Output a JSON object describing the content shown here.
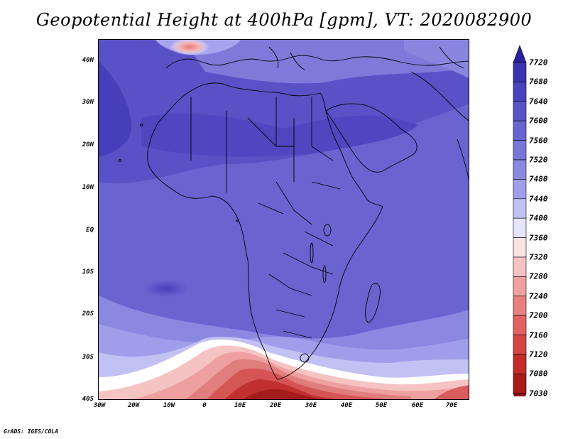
{
  "title": "Geopotential Height at 400hPa [gpm], VT: 2020082900",
  "credit": "GrADS: IGES/COLA",
  "map": {
    "projection": "latlon",
    "lat_range": [
      -40,
      45
    ],
    "lon_range": [
      -30,
      75
    ],
    "lat_ticks": [
      "40N",
      "30N",
      "20N",
      "10N",
      "EQ",
      "10S",
      "20S",
      "30S",
      "40S"
    ],
    "lon_ticks": [
      "30W",
      "20W",
      "10W",
      "0",
      "10E",
      "20E",
      "30E",
      "40E",
      "50E",
      "60E",
      "70E"
    ],
    "field_description": "",
    "boundaries": "country outlines"
  },
  "colorbar": {
    "levels": [
      "7720",
      "7680",
      "7640",
      "7600",
      "7560",
      "7520",
      "7480",
      "7440",
      "7400",
      "7360",
      "7320",
      "7280",
      "7240",
      "7200",
      "7160",
      "7120",
      "7080",
      "7030"
    ],
    "colors": [
      "#2a1f9e",
      "#3b34b0",
      "#4a43bd",
      "#5a53c7",
      "#6a64d0",
      "#7a75d9",
      "#8b88e2",
      "#a09eea",
      "#c2c1f3",
      "#e6e5fb",
      "#fbe4e4",
      "#f6c3c3",
      "#f0a2a2",
      "#e98080",
      "#e06262",
      "#d54545",
      "#c42c2c",
      "#a81c1c",
      "#8a1414"
    ]
  }
}
